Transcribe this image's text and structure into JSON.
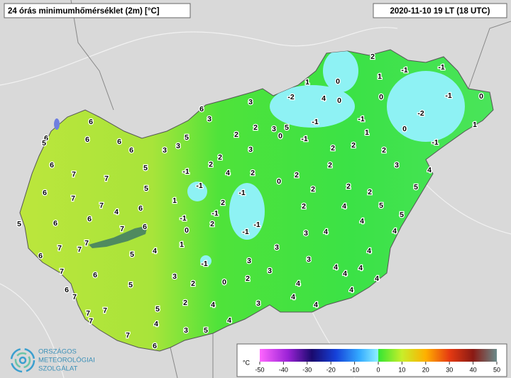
{
  "header": {
    "title": "24 órás minimumhőmérséklet (2m) [°C]",
    "time": "2020-11-10 19 LT (18 UTC)"
  },
  "logo": {
    "lines": [
      "ORSZÁGOS",
      "METEOROLÓGIAI",
      "SZOLGÁLAT"
    ]
  },
  "colorbar": {
    "unit": "°C",
    "ticks": [
      -50,
      -40,
      -30,
      -20,
      -10,
      0,
      10,
      20,
      30,
      40,
      50
    ]
  },
  "stations": [
    6,
    6,
    5,
    6,
    6,
    6,
    6,
    7,
    7,
    6,
    7,
    7,
    5,
    6,
    6,
    4,
    6,
    7,
    6,
    6,
    7,
    7,
    7,
    7,
    6,
    5,
    4,
    6,
    7,
    5,
    7,
    7,
    7,
    5,
    4,
    7,
    6,
    5,
    5,
    3,
    3,
    5,
    6,
    3,
    1,
    -1,
    -1,
    -1,
    0,
    2,
    2,
    4,
    -1,
    2,
    2,
    1,
    -1,
    3,
    2,
    2,
    4,
    3,
    5,
    4,
    0,
    2,
    3,
    3,
    3,
    -1,
    -1,
    -1,
    3,
    2,
    2,
    2,
    0,
    3,
    4,
    4,
    4,
    2,
    2,
    2,
    3,
    3,
    4,
    2,
    4,
    4,
    4,
    4,
    2,
    2,
    4,
    5,
    4,
    4,
    5,
    3,
    5,
    4,
    4,
    4,
    3,
    3,
    5,
    0,
    -1,
    -1,
    4,
    -2,
    1,
    0,
    0,
    2,
    1,
    0,
    -1,
    -1,
    -1,
    1,
    2,
    2,
    2,
    0,
    -2,
    -1,
    0,
    1,
    -1
  ]
}
